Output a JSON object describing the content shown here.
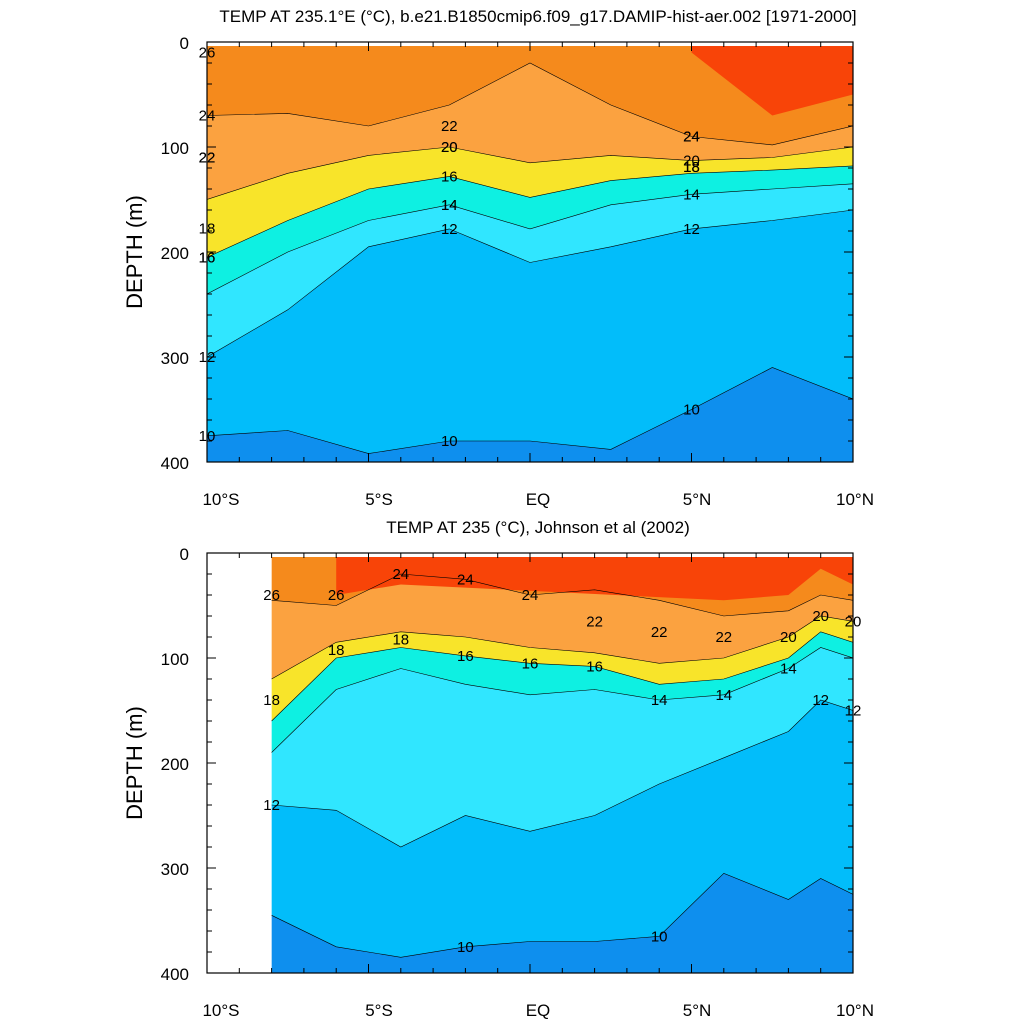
{
  "chart_data": [
    {
      "type": "heatmap",
      "title": "TEMP AT 235.1°E (°C), b.e21.B1850cmip6.f09_g17.DAMIP-hist-aer.002 [1971-2000]",
      "ylabel": "DEPTH (m)",
      "xlabel": "",
      "x_ticks": [
        "10°S",
        "5°S",
        "EQ",
        "5°N",
        "10°N"
      ],
      "y_ticks": [
        "0",
        "100",
        "200",
        "300",
        "400"
      ],
      "xlim": [
        -10,
        10
      ],
      "ylim": [
        0,
        400
      ],
      "y_reversed": true,
      "contour_levels": [
        10,
        12,
        14,
        16,
        18,
        20,
        22,
        24,
        26
      ],
      "contour_labels": [
        "24",
        "22",
        "20",
        "18",
        "16",
        "14",
        "12",
        "12",
        "24",
        "22",
        "20",
        "18",
        "16",
        "14",
        "24",
        "22",
        "20",
        "18",
        "16",
        "14",
        "12",
        "26",
        "10",
        "10",
        "10"
      ],
      "isotherm_depths": {
        "lat": [
          -10,
          -7.5,
          -5,
          -2.5,
          0,
          2.5,
          5,
          7.5,
          10
        ],
        "26": [
          null,
          null,
          null,
          null,
          null,
          null,
          10,
          70,
          50
        ],
        "24": [
          70,
          68,
          80,
          60,
          20,
          60,
          90,
          98,
          80
        ],
        "20": [
          150,
          125,
          108,
          100,
          115,
          108,
          113,
          110,
          100
        ],
        "16": [
          205,
          170,
          140,
          128,
          148,
          132,
          125,
          122,
          118
        ],
        "14": [
          240,
          200,
          170,
          155,
          178,
          155,
          145,
          140,
          135
        ],
        "12": [
          300,
          255,
          195,
          178,
          210,
          195,
          178,
          170,
          160
        ],
        "10": [
          375,
          370,
          392,
          380,
          380,
          388,
          350,
          310,
          340
        ]
      }
    },
    {
      "type": "heatmap",
      "title": "TEMP AT 235 (°C), Johnson et al (2002)",
      "ylabel": "DEPTH (m)",
      "xlabel": "",
      "x_ticks": [
        "10°S",
        "5°S",
        "EQ",
        "5°N",
        "10°N"
      ],
      "y_ticks": [
        "0",
        "100",
        "200",
        "300",
        "400"
      ],
      "xlim": [
        -10,
        10
      ],
      "ylim": [
        0,
        400
      ],
      "y_reversed": true,
      "data_start_lat": -8,
      "contour_levels": [
        10,
        12,
        14,
        16,
        18,
        20,
        22,
        24,
        26
      ],
      "contour_labels": [
        "26",
        "24",
        "22",
        "20",
        "18",
        "16",
        "14",
        "12",
        "24",
        "22",
        "20",
        "18",
        "16",
        "14",
        "12",
        "26",
        "24",
        "22",
        "20",
        "18",
        "16",
        "14",
        "12",
        "10",
        "10"
      ],
      "isotherm_depths": {
        "lat": [
          -8,
          -6,
          -4,
          -2,
          0,
          2,
          4,
          6,
          8,
          9,
          10
        ],
        "26": [
          null,
          40,
          30,
          null,
          null,
          null,
          null,
          45,
          40,
          15,
          30
        ],
        "24": [
          45,
          50,
          20,
          25,
          40,
          35,
          45,
          60,
          55,
          40,
          45
        ],
        "20": [
          120,
          85,
          75,
          80,
          90,
          95,
          105,
          100,
          80,
          60,
          65
        ],
        "16": [
          160,
          100,
          90,
          98,
          105,
          108,
          125,
          120,
          100,
          75,
          85
        ],
        "14": [
          190,
          130,
          110,
          125,
          135,
          130,
          140,
          135,
          110,
          90,
          100
        ],
        "12": [
          240,
          245,
          280,
          250,
          265,
          250,
          220,
          195,
          170,
          140,
          150
        ],
        "10": [
          345,
          375,
          385,
          375,
          370,
          370,
          365,
          305,
          330,
          310,
          325
        ]
      }
    }
  ]
}
